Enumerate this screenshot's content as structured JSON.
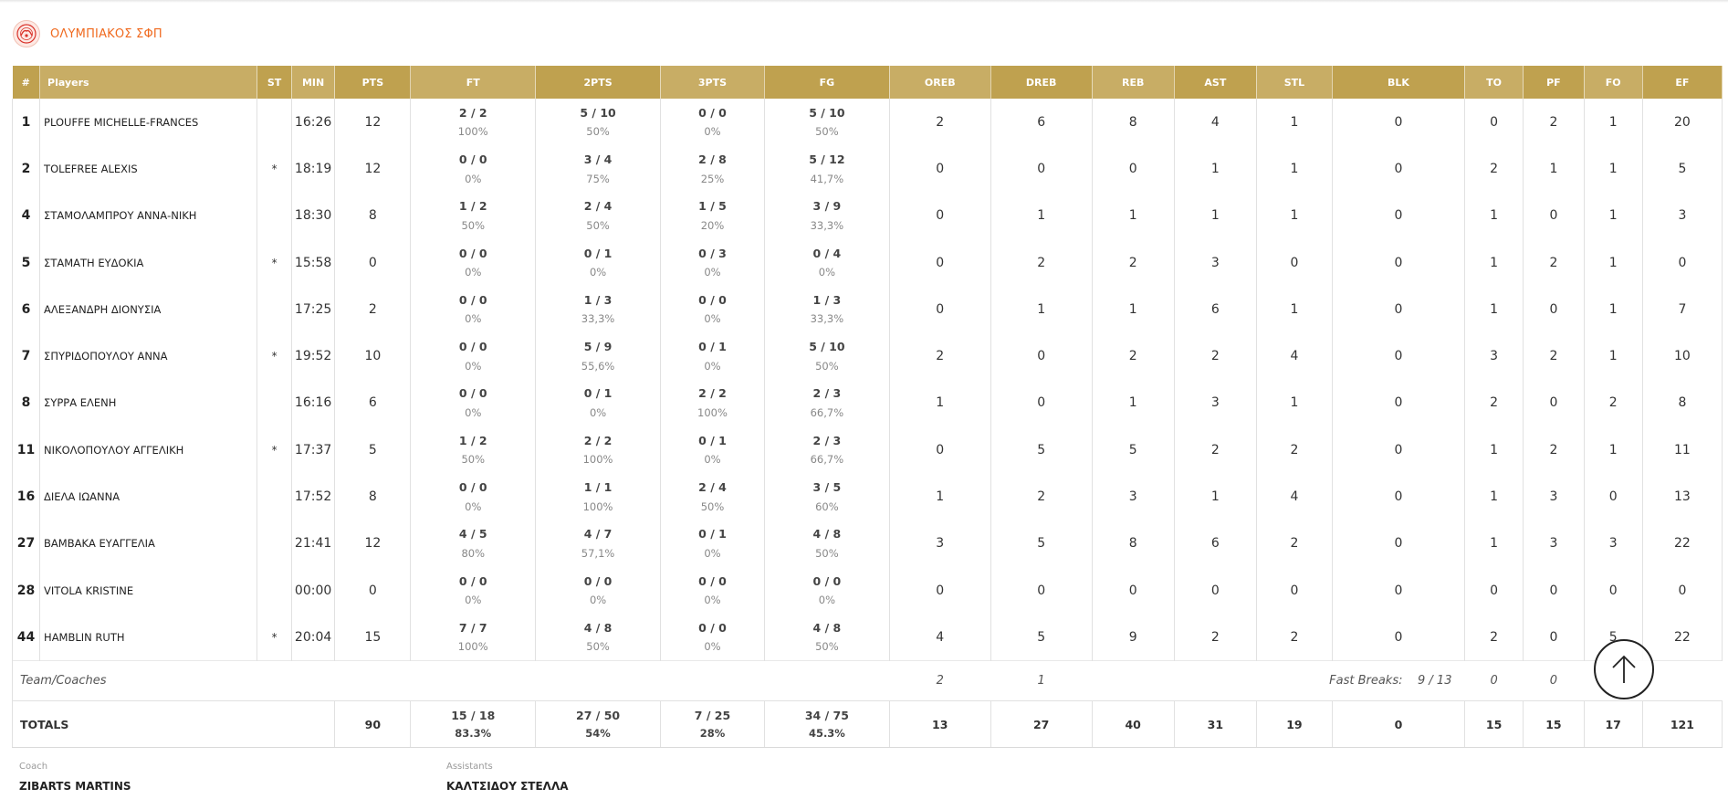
{
  "team": {
    "name": "ΟΛΥΜΠΙΑΚΟΣ ΣΦΠ",
    "logo_icon": "olympiacos-logo-icon",
    "accent": "#f06a1f",
    "header_gold": "#bfa14f"
  },
  "columns": [
    "#",
    "Players",
    "ST",
    "MIN",
    "PTS",
    "FT",
    "2PTS",
    "3PTS",
    "FG",
    "OREB",
    "DREB",
    "REB",
    "AST",
    "STL",
    "BLK",
    "TO",
    "PF",
    "FO",
    "EF"
  ],
  "players": [
    {
      "num": "1",
      "name": "PLOUFFE MICHELLE-FRANCES",
      "st": "",
      "min": "16:26",
      "pts": "12",
      "ft": "2 / 2",
      "ft_pct": "100%",
      "p2": "5 / 10",
      "p2_pct": "50%",
      "p3": "0 / 0",
      "p3_pct": "0%",
      "fg": "5 / 10",
      "fg_pct": "50%",
      "oreb": "2",
      "dreb": "6",
      "reb": "8",
      "ast": "4",
      "stl": "1",
      "blk": "0",
      "to": "0",
      "pf": "2",
      "fo": "1",
      "ef": "20"
    },
    {
      "num": "2",
      "name": "TOLEFREE ALEXIS",
      "st": "*",
      "min": "18:19",
      "pts": "12",
      "ft": "0 / 0",
      "ft_pct": "0%",
      "p2": "3 / 4",
      "p2_pct": "75%",
      "p3": "2 / 8",
      "p3_pct": "25%",
      "fg": "5 / 12",
      "fg_pct": "41,7%",
      "oreb": "0",
      "dreb": "0",
      "reb": "0",
      "ast": "1",
      "stl": "1",
      "blk": "0",
      "to": "2",
      "pf": "1",
      "fo": "1",
      "ef": "5"
    },
    {
      "num": "4",
      "name": "ΣΤΑΜΟΛΑΜΠΡΟΥ ΑΝΝΑ-ΝΙΚΗ",
      "st": "",
      "min": "18:30",
      "pts": "8",
      "ft": "1 / 2",
      "ft_pct": "50%",
      "p2": "2 / 4",
      "p2_pct": "50%",
      "p3": "1 / 5",
      "p3_pct": "20%",
      "fg": "3 / 9",
      "fg_pct": "33,3%",
      "oreb": "0",
      "dreb": "1",
      "reb": "1",
      "ast": "1",
      "stl": "1",
      "blk": "0",
      "to": "1",
      "pf": "0",
      "fo": "1",
      "ef": "3"
    },
    {
      "num": "5",
      "name": "ΣΤΑΜΑΤΗ ΕΥΔΟΚΙΑ",
      "st": "*",
      "min": "15:58",
      "pts": "0",
      "ft": "0 / 0",
      "ft_pct": "0%",
      "p2": "0 / 1",
      "p2_pct": "0%",
      "p3": "0 / 3",
      "p3_pct": "0%",
      "fg": "0 / 4",
      "fg_pct": "0%",
      "oreb": "0",
      "dreb": "2",
      "reb": "2",
      "ast": "3",
      "stl": "0",
      "blk": "0",
      "to": "1",
      "pf": "2",
      "fo": "1",
      "ef": "0"
    },
    {
      "num": "6",
      "name": "ΑΛΕΞΑΝΔΡΗ ΔΙΟΝΥΣΙΑ",
      "st": "",
      "min": "17:25",
      "pts": "2",
      "ft": "0 / 0",
      "ft_pct": "0%",
      "p2": "1 / 3",
      "p2_pct": "33,3%",
      "p3": "0 / 0",
      "p3_pct": "0%",
      "fg": "1 / 3",
      "fg_pct": "33,3%",
      "oreb": "0",
      "dreb": "1",
      "reb": "1",
      "ast": "6",
      "stl": "1",
      "blk": "0",
      "to": "1",
      "pf": "0",
      "fo": "1",
      "ef": "7"
    },
    {
      "num": "7",
      "name": "ΣΠΥΡΙΔΟΠΟΥΛΟΥ ΑΝΝΑ",
      "st": "*",
      "min": "19:52",
      "pts": "10",
      "ft": "0 / 0",
      "ft_pct": "0%",
      "p2": "5 / 9",
      "p2_pct": "55,6%",
      "p3": "0 / 1",
      "p3_pct": "0%",
      "fg": "5 / 10",
      "fg_pct": "50%",
      "oreb": "2",
      "dreb": "0",
      "reb": "2",
      "ast": "2",
      "stl": "4",
      "blk": "0",
      "to": "3",
      "pf": "2",
      "fo": "1",
      "ef": "10"
    },
    {
      "num": "8",
      "name": "ΣΥΡΡΑ ΕΛΕΝΗ",
      "st": "",
      "min": "16:16",
      "pts": "6",
      "ft": "0 / 0",
      "ft_pct": "0%",
      "p2": "0 / 1",
      "p2_pct": "0%",
      "p3": "2 / 2",
      "p3_pct": "100%",
      "fg": "2 / 3",
      "fg_pct": "66,7%",
      "oreb": "1",
      "dreb": "0",
      "reb": "1",
      "ast": "3",
      "stl": "1",
      "blk": "0",
      "to": "2",
      "pf": "0",
      "fo": "2",
      "ef": "8"
    },
    {
      "num": "11",
      "name": "ΝΙΚΟΛΟΠΟΥΛΟΥ ΑΓΓΕΛΙΚΗ",
      "st": "*",
      "min": "17:37",
      "pts": "5",
      "ft": "1 / 2",
      "ft_pct": "50%",
      "p2": "2 / 2",
      "p2_pct": "100%",
      "p3": "0 / 1",
      "p3_pct": "0%",
      "fg": "2 / 3",
      "fg_pct": "66,7%",
      "oreb": "0",
      "dreb": "5",
      "reb": "5",
      "ast": "2",
      "stl": "2",
      "blk": "0",
      "to": "1",
      "pf": "2",
      "fo": "1",
      "ef": "11"
    },
    {
      "num": "16",
      "name": "ΔΙΕΛΑ ΙΩΑΝΝΑ",
      "st": "",
      "min": "17:52",
      "pts": "8",
      "ft": "0 / 0",
      "ft_pct": "0%",
      "p2": "1 / 1",
      "p2_pct": "100%",
      "p3": "2 / 4",
      "p3_pct": "50%",
      "fg": "3 / 5",
      "fg_pct": "60%",
      "oreb": "1",
      "dreb": "2",
      "reb": "3",
      "ast": "1",
      "stl": "4",
      "blk": "0",
      "to": "1",
      "pf": "3",
      "fo": "0",
      "ef": "13"
    },
    {
      "num": "27",
      "name": "ΒΑΜΒΑΚΑ ΕΥΑΓΓΕΛΙΑ",
      "st": "",
      "min": "21:41",
      "pts": "12",
      "ft": "4 / 5",
      "ft_pct": "80%",
      "p2": "4 / 7",
      "p2_pct": "57,1%",
      "p3": "0 / 1",
      "p3_pct": "0%",
      "fg": "4 / 8",
      "fg_pct": "50%",
      "oreb": "3",
      "dreb": "5",
      "reb": "8",
      "ast": "6",
      "stl": "2",
      "blk": "0",
      "to": "1",
      "pf": "3",
      "fo": "3",
      "ef": "22"
    },
    {
      "num": "28",
      "name": "VITOLA KRISTINE",
      "st": "",
      "min": "00:00",
      "pts": "0",
      "ft": "0 / 0",
      "ft_pct": "0%",
      "p2": "0 / 0",
      "p2_pct": "0%",
      "p3": "0 / 0",
      "p3_pct": "0%",
      "fg": "0 / 0",
      "fg_pct": "0%",
      "oreb": "0",
      "dreb": "0",
      "reb": "0",
      "ast": "0",
      "stl": "0",
      "blk": "0",
      "to": "0",
      "pf": "0",
      "fo": "0",
      "ef": "0"
    },
    {
      "num": "44",
      "name": "HAMBLIN RUTH",
      "st": "*",
      "min": "20:04",
      "pts": "15",
      "ft": "7 / 7",
      "ft_pct": "100%",
      "p2": "4 / 8",
      "p2_pct": "50%",
      "p3": "0 / 0",
      "p3_pct": "0%",
      "fg": "4 / 8",
      "fg_pct": "50%",
      "oreb": "4",
      "dreb": "5",
      "reb": "9",
      "ast": "2",
      "stl": "2",
      "blk": "0",
      "to": "2",
      "pf": "0",
      "fo": "5",
      "ef": "22"
    }
  ],
  "team_row": {
    "label": "Team/Coaches",
    "oreb": "2",
    "dreb": "1",
    "fast_breaks_label": "Fast Breaks:",
    "fast_breaks_value": "9 / 13",
    "to": "0",
    "pf": "0"
  },
  "totals": {
    "label": "TOTALS",
    "pts": "90",
    "ft": "15 / 18",
    "ft_pct": "83.3%",
    "p2": "27 / 50",
    "p2_pct": "54%",
    "p3": "7 / 25",
    "p3_pct": "28%",
    "fg": "34 / 75",
    "fg_pct": "45.3%",
    "oreb": "13",
    "dreb": "27",
    "reb": "40",
    "ast": "31",
    "stl": "19",
    "blk": "0",
    "to": "15",
    "pf": "15",
    "fo": "17",
    "ef": "121"
  },
  "staff": {
    "coach_label": "Coach",
    "coach_name": "ZIBARTS MARTINS",
    "assistants_label": "Assistants",
    "assistants_name": "ΚΑΛΤΣΙΔΟΥ ΣΤΕΛΛΑ"
  },
  "scroll_top_icon": "arrow-up-icon"
}
